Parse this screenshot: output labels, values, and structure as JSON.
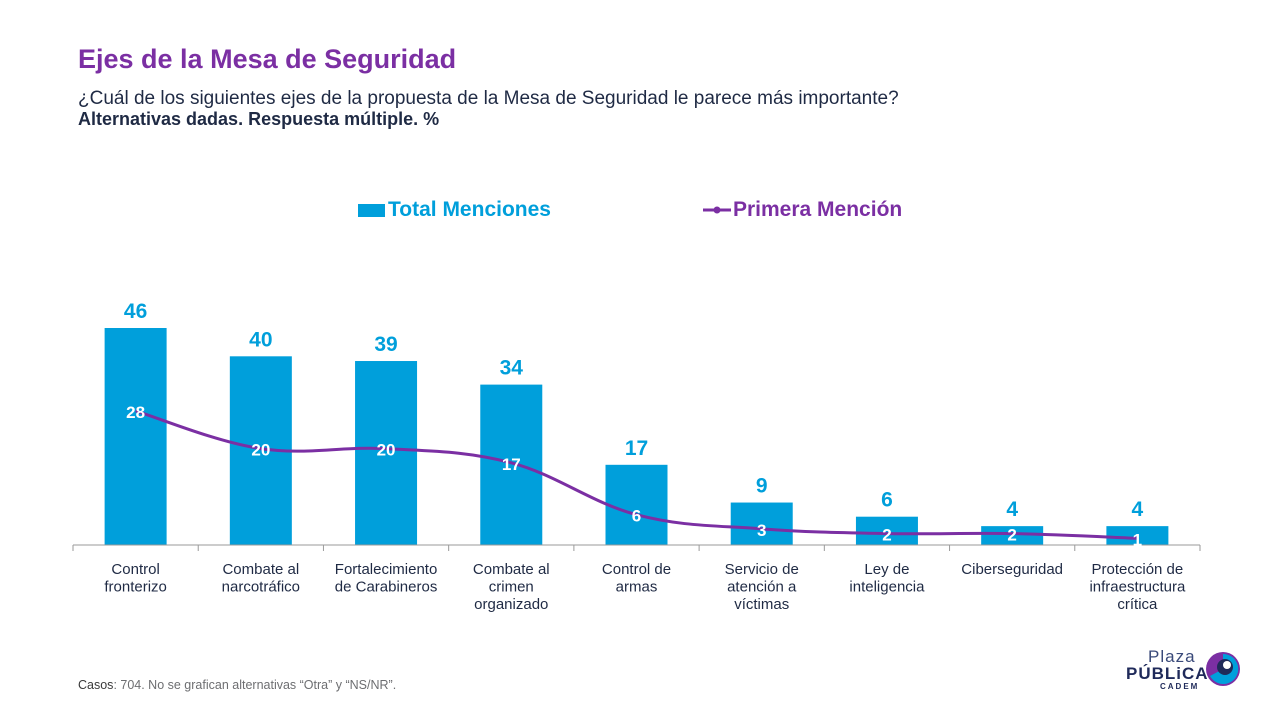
{
  "header": {
    "title": "Ejes de la Mesa de Seguridad",
    "subtitle": "¿Cuál de los siguientes ejes de la propuesta de la Mesa de Seguridad le parece más importante?",
    "subtitle2": "Alternativas dadas. Respuesta múltiple. %"
  },
  "footnote": {
    "label": "Casos",
    "text": ": 704. No se grafican alternativas “Otra” y “NS/NR”."
  },
  "logo": {
    "line1": "Plaza",
    "line2": "PÚBLiCA",
    "line3": "CADEM"
  },
  "colors": {
    "bar": "#009fdb",
    "line": "#7b2fa3",
    "title": "#7b2fa3",
    "text": "#1f2a44"
  },
  "chart_data": {
    "type": "bar",
    "categories": [
      [
        "Control",
        "fronterizo"
      ],
      [
        "Combate al",
        "narcotráfico"
      ],
      [
        "Fortalecimiento",
        "de Carabineros"
      ],
      [
        "Combate al",
        "crimen",
        "organizado"
      ],
      [
        "Control de",
        "armas"
      ],
      [
        "Servicio de",
        "atención a",
        "víctimas"
      ],
      [
        "Ley de",
        "inteligencia"
      ],
      [
        "Ciberseguridad"
      ],
      [
        "Protección de",
        "infraestructura",
        "crítica"
      ]
    ],
    "series": [
      {
        "name": "Total Menciones",
        "type": "bar",
        "values": [
          46,
          40,
          39,
          34,
          17,
          9,
          6,
          4,
          4
        ]
      },
      {
        "name": "Primera Mención",
        "type": "line",
        "values": [
          28,
          20,
          20,
          17,
          6,
          3,
          2,
          2,
          1
        ]
      }
    ],
    "ylim": [
      0,
      50
    ],
    "legend": "top-center",
    "grid": false
  }
}
